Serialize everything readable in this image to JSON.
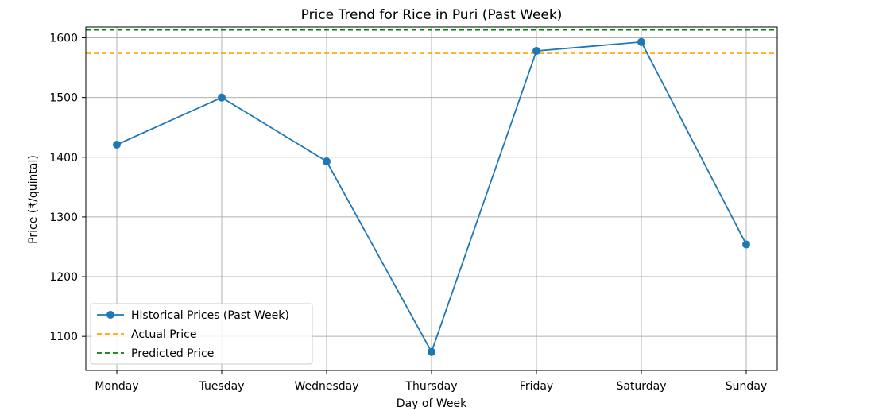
{
  "chart_data": {
    "type": "line",
    "title": "Price Trend for Rice in Puri (Past Week)",
    "xlabel": "Day of Week",
    "ylabel": "Price (₹/quintal)",
    "categories": [
      "Monday",
      "Tuesday",
      "Wednesday",
      "Thursday",
      "Friday",
      "Saturday",
      "Sunday"
    ],
    "ylim": [
      1043,
      1618
    ],
    "yticks": [
      1100,
      1200,
      1300,
      1400,
      1500,
      1600
    ],
    "grid": true,
    "legend_position": "lower-left",
    "series": [
      {
        "name": "Historical Prices (Past Week)",
        "values": [
          1421,
          1500,
          1393,
          1074,
          1578,
          1593,
          1254
        ],
        "color": "#1f77b4",
        "style": "line-marker"
      }
    ],
    "reference_lines": [
      {
        "name": "Actual Price",
        "value": 1574,
        "color": "#ffa500",
        "style": "dashed"
      },
      {
        "name": "Predicted Price",
        "value": 1613,
        "color": "#008000",
        "style": "dashed"
      }
    ]
  }
}
